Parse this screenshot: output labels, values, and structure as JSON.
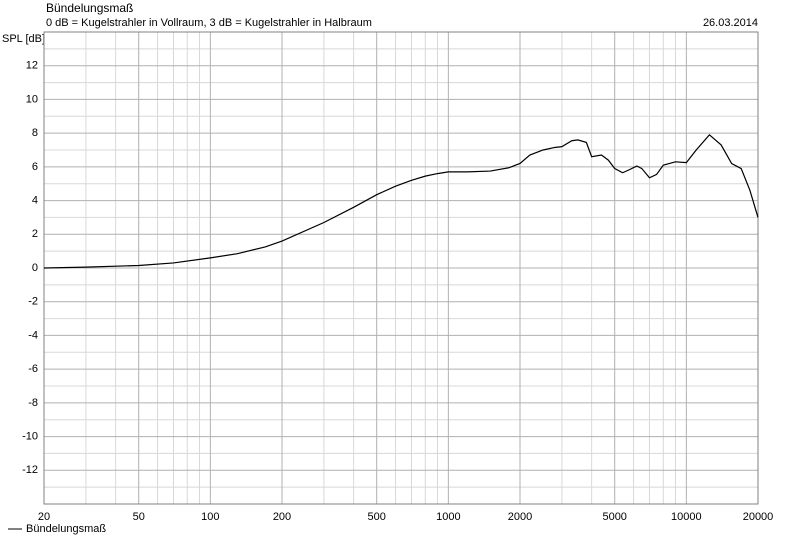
{
  "chart_data": {
    "type": "line",
    "title": "Bündelungsmaß",
    "subtitle": "0 dB = Kugelstrahler in Vollraum, 3 dB = Kugelstrahler in Halbraum",
    "date": "26.03.2014",
    "y_label": "SPL [dB]",
    "x_scale": "log",
    "grid": true,
    "xlim": [
      20,
      20000
    ],
    "ylim": [
      -14,
      14
    ],
    "xticks": [
      20,
      50,
      100,
      200,
      500,
      1000,
      2000,
      5000,
      10000,
      20000
    ],
    "xminor_ticks": [
      30,
      40,
      60,
      70,
      80,
      90,
      300,
      400,
      600,
      700,
      800,
      900,
      3000,
      4000,
      6000,
      7000,
      8000,
      9000
    ],
    "yticks": [
      -12,
      -10,
      -8,
      -6,
      -4,
      -2,
      0,
      2,
      4,
      6,
      8,
      10,
      12
    ],
    "yminor_ticks": [
      -13,
      -11,
      -9,
      -7,
      -5,
      -3,
      -1,
      1,
      3,
      5,
      7,
      9,
      11,
      13
    ],
    "x": [
      20,
      30,
      50,
      70,
      100,
      130,
      170,
      200,
      300,
      400,
      500,
      600,
      700,
      800,
      900,
      1000,
      1200,
      1500,
      1800,
      2000,
      2200,
      2500,
      2800,
      3000,
      3300,
      3500,
      3800,
      4000,
      4400,
      4700,
      5000,
      5400,
      5800,
      6200,
      6500,
      7000,
      7500,
      8000,
      9000,
      10000,
      11000,
      12500,
      14000,
      15500,
      17000,
      18500,
      20000
    ],
    "series": [
      {
        "name": "Bündelungsmaß",
        "color": "#000000",
        "values": [
          0,
          0.05,
          0.15,
          0.3,
          0.6,
          0.85,
          1.25,
          1.6,
          2.7,
          3.6,
          4.35,
          4.85,
          5.2,
          5.45,
          5.6,
          5.7,
          5.7,
          5.75,
          5.95,
          6.2,
          6.7,
          7.0,
          7.15,
          7.2,
          7.55,
          7.6,
          7.45,
          6.6,
          6.7,
          6.4,
          5.9,
          5.65,
          5.85,
          6.05,
          5.9,
          5.35,
          5.55,
          6.1,
          6.3,
          6.25,
          7.0,
          7.9,
          7.3,
          6.2,
          5.9,
          4.6,
          3.0
        ]
      }
    ]
  }
}
